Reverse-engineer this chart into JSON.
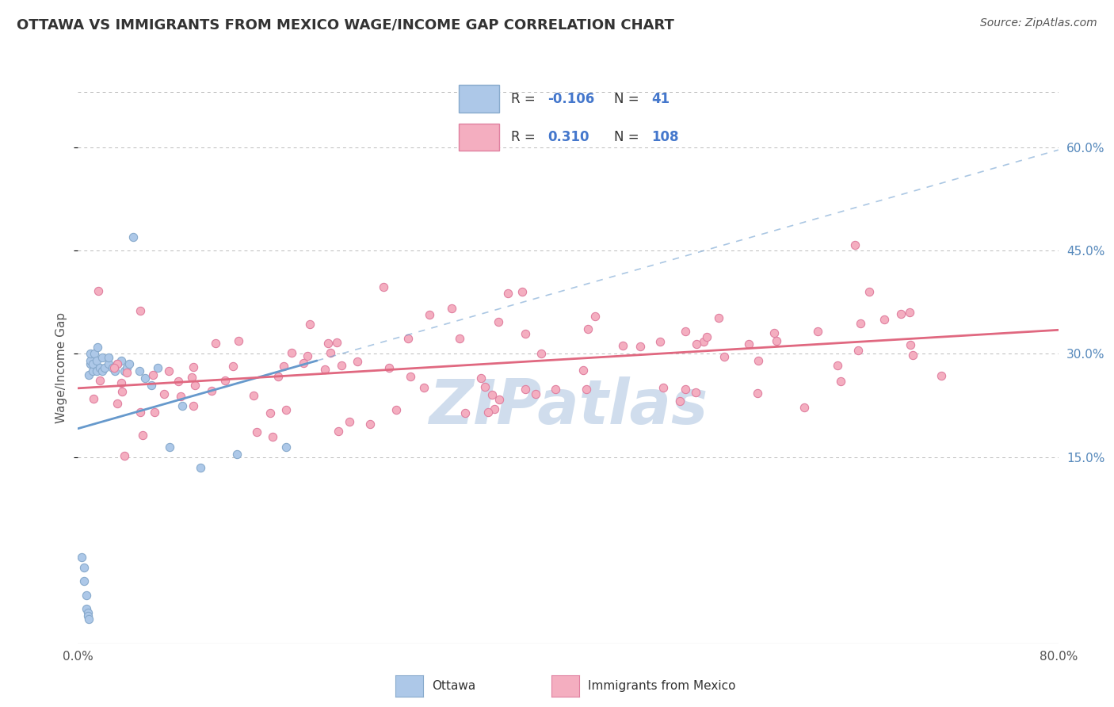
{
  "title": "OTTAWA VS IMMIGRANTS FROM MEXICO WAGE/INCOME GAP CORRELATION CHART",
  "source": "Source: ZipAtlas.com",
  "ylabel": "Wage/Income Gap",
  "ytick_labels": [
    "15.0%",
    "30.0%",
    "45.0%",
    "60.0%"
  ],
  "ytick_values": [
    0.15,
    0.3,
    0.45,
    0.6
  ],
  "xlim": [
    0.0,
    0.8
  ],
  "ylim": [
    -0.12,
    0.68
  ],
  "ottawa_R": "-0.106",
  "ottawa_N": "41",
  "mexico_R": "0.310",
  "mexico_N": "108",
  "ottawa_color": "#adc8e8",
  "ottawa_edge_color": "#88aacc",
  "mexico_color": "#f4aec0",
  "mexico_edge_color": "#e080a0",
  "ottawa_line_color": "#6699cc",
  "mexico_line_color": "#e06880",
  "watermark_color": "#c8d8ea",
  "background_color": "#ffffff",
  "grid_color": "#bbbbbb"
}
